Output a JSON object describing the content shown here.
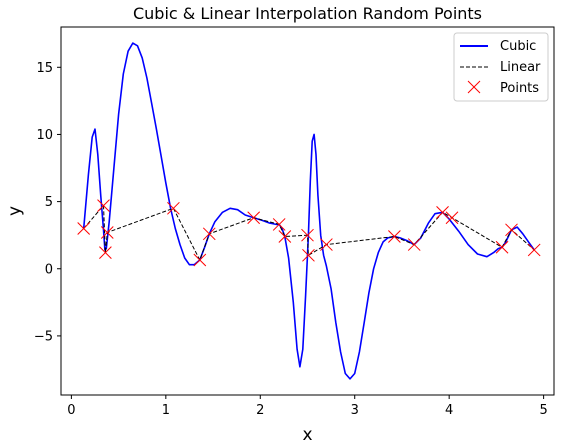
{
  "chart_data": {
    "type": "line",
    "title": "Cubic & Linear Interpolation Random Points",
    "xlabel": "x",
    "ylabel": "y",
    "xlim": [
      -0.11,
      5.11
    ],
    "ylim": [
      -9.4,
      18.0
    ],
    "xticks": [
      0,
      1,
      2,
      3,
      4,
      5
    ],
    "xtick_labels": [
      "0",
      "1",
      "2",
      "3",
      "4",
      "5"
    ],
    "yticks": [
      -5,
      0,
      5,
      10,
      15
    ],
    "ytick_labels": [
      "−5",
      "0",
      "5",
      "10",
      "15"
    ],
    "grid": false,
    "legend_position": "top-right",
    "points": {
      "x": [
        0.13,
        0.34,
        0.36,
        0.38,
        1.08,
        1.36,
        1.46,
        1.93,
        2.2,
        2.26,
        2.5,
        2.51,
        2.7,
        3.42,
        3.63,
        3.93,
        4.03,
        4.56,
        4.66,
        4.9
      ],
      "y": [
        3.0,
        4.7,
        1.2,
        2.7,
        4.5,
        0.65,
        2.6,
        3.8,
        3.3,
        2.4,
        2.5,
        1.0,
        1.8,
        2.4,
        1.8,
        4.2,
        3.8,
        1.6,
        2.9,
        1.4
      ]
    },
    "series": [
      {
        "name": "Cubic",
        "style": "solid",
        "color": "#0000ff",
        "x": [
          0.13,
          0.18,
          0.22,
          0.25,
          0.28,
          0.31,
          0.34,
          0.355,
          0.37,
          0.4,
          0.45,
          0.5,
          0.55,
          0.6,
          0.65,
          0.7,
          0.75,
          0.8,
          0.85,
          0.9,
          0.95,
          1.0,
          1.05,
          1.1,
          1.15,
          1.2,
          1.25,
          1.3,
          1.36,
          1.41,
          1.46,
          1.52,
          1.6,
          1.68,
          1.76,
          1.84,
          1.93,
          2.02,
          2.1,
          2.17,
          2.2,
          2.23,
          2.26,
          2.3,
          2.35,
          2.39,
          2.42,
          2.45,
          2.48,
          2.51,
          2.53,
          2.55,
          2.57,
          2.59,
          2.61,
          2.64,
          2.67,
          2.7,
          2.75,
          2.8,
          2.85,
          2.9,
          2.95,
          3.0,
          3.05,
          3.1,
          3.15,
          3.2,
          3.25,
          3.3,
          3.35,
          3.42,
          3.48,
          3.55,
          3.63,
          3.7,
          3.78,
          3.85,
          3.93,
          4.0,
          4.1,
          4.2,
          4.3,
          4.4,
          4.47,
          4.52,
          4.56,
          4.6,
          4.66,
          4.72,
          4.78,
          4.84,
          4.9
        ],
        "y": [
          3.0,
          7.0,
          9.8,
          10.4,
          8.5,
          5.5,
          2.9,
          1.4,
          1.5,
          3.5,
          7.5,
          11.5,
          14.5,
          16.2,
          16.8,
          16.6,
          15.7,
          14.2,
          12.3,
          10.4,
          8.4,
          6.4,
          4.5,
          3.0,
          1.8,
          0.8,
          0.3,
          0.3,
          0.65,
          1.6,
          2.6,
          3.5,
          4.2,
          4.5,
          4.4,
          4.0,
          3.8,
          3.6,
          3.4,
          3.3,
          3.3,
          3.0,
          2.4,
          0.8,
          -2.5,
          -6.0,
          -7.3,
          -6.0,
          -2.0,
          2.5,
          6.5,
          9.5,
          10.0,
          8.5,
          5.5,
          2.5,
          1.0,
          0.2,
          -1.5,
          -4.0,
          -6.2,
          -7.8,
          -8.2,
          -7.8,
          -6.2,
          -4.0,
          -1.8,
          0.0,
          1.2,
          2.0,
          2.3,
          2.4,
          2.3,
          2.1,
          1.8,
          2.3,
          3.4,
          4.1,
          4.2,
          3.7,
          2.8,
          1.8,
          1.1,
          0.9,
          1.2,
          1.5,
          1.6,
          2.0,
          2.9,
          3.1,
          2.6,
          2.0,
          1.4
        ]
      },
      {
        "name": "Linear",
        "style": "dashed",
        "color": "#000000",
        "x": [
          0.13,
          0.34,
          0.36,
          0.38,
          1.08,
          1.36,
          1.46,
          1.93,
          2.2,
          2.26,
          2.5,
          2.51,
          2.7,
          3.42,
          3.63,
          3.93,
          4.03,
          4.56,
          4.66,
          4.9
        ],
        "y": [
          3.0,
          4.7,
          1.2,
          2.7,
          4.5,
          0.65,
          2.6,
          3.8,
          3.3,
          2.4,
          2.5,
          1.0,
          1.8,
          2.4,
          1.8,
          4.2,
          3.8,
          1.6,
          2.9,
          1.4
        ]
      }
    ],
    "legend": [
      {
        "label": "Cubic",
        "kind": "line",
        "color": "#0000ff"
      },
      {
        "label": "Linear",
        "kind": "dashed",
        "color": "#000000"
      },
      {
        "label": "Points",
        "kind": "marker",
        "color": "#ff0000"
      }
    ]
  }
}
